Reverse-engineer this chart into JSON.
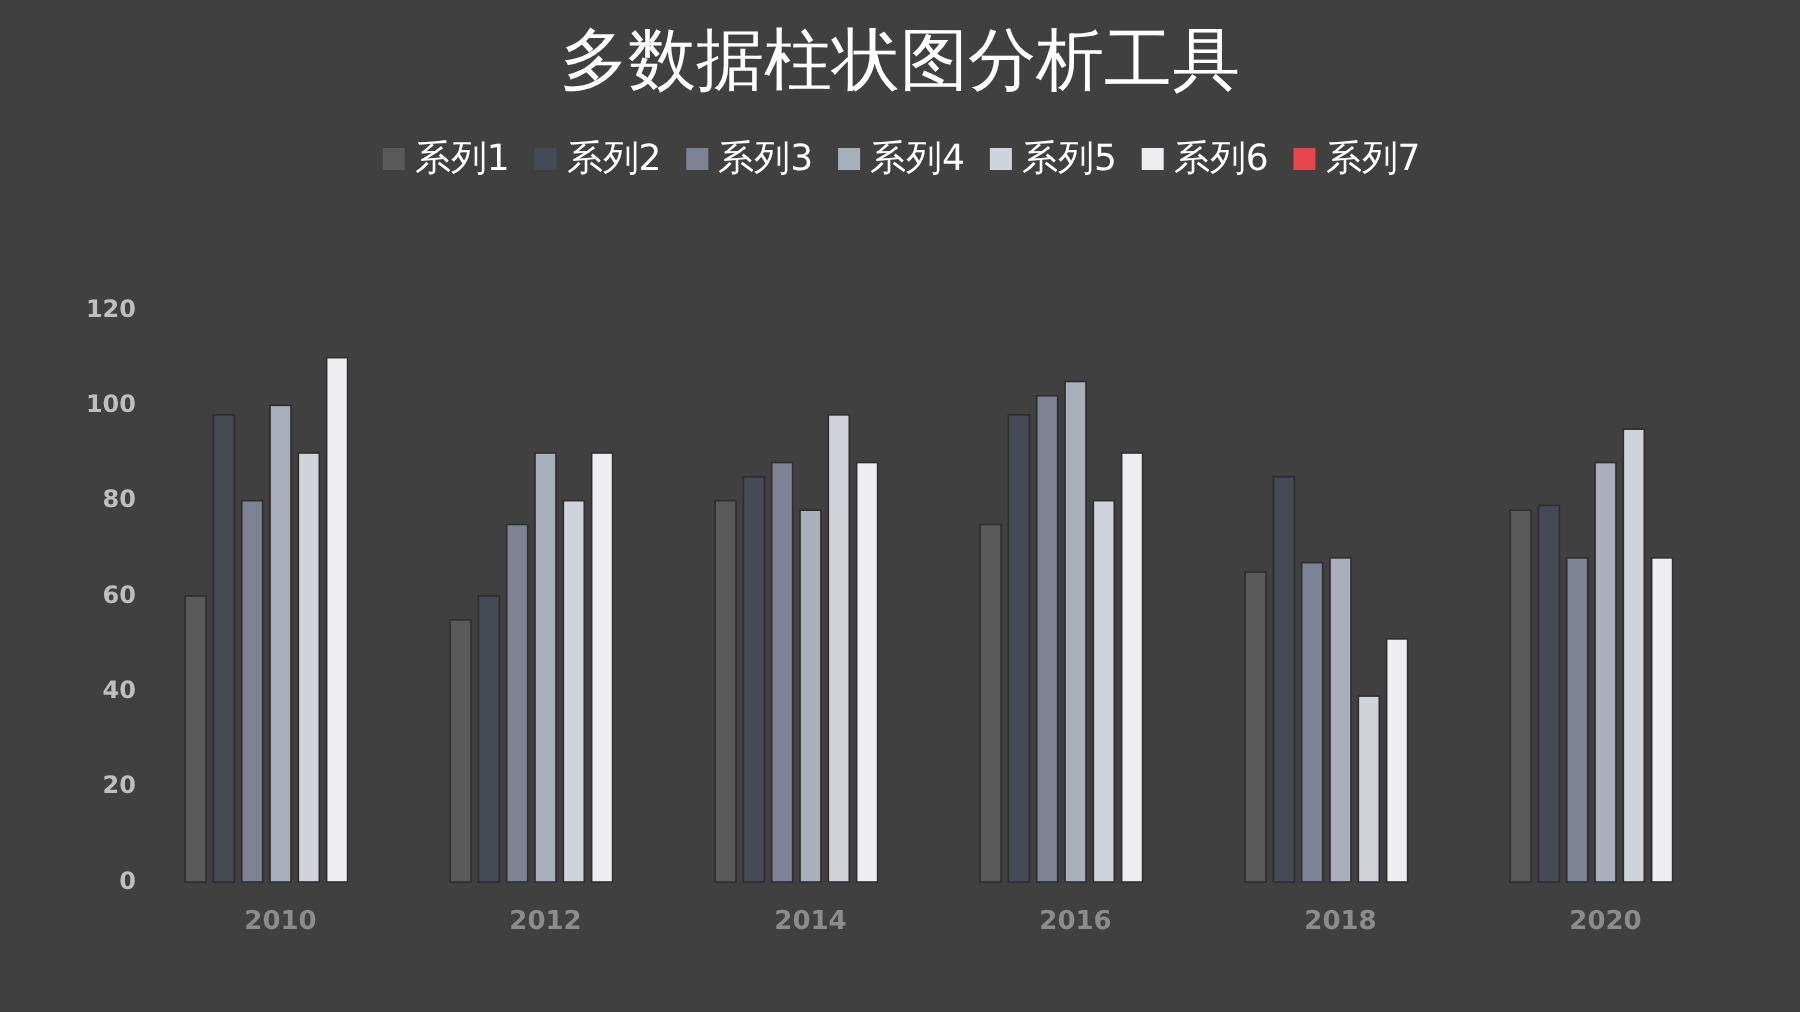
{
  "chart_data": {
    "type": "bar",
    "title": "多数据柱状图分析工具",
    "categories": [
      "2010",
      "2012",
      "2014",
      "2016",
      "2018",
      "2020"
    ],
    "series": [
      {
        "name": "系列1",
        "color": "#595959",
        "values": [
          60,
          55,
          80,
          75,
          65,
          78
        ]
      },
      {
        "name": "系列2",
        "color": "#454a55",
        "values": [
          98,
          60,
          85,
          98,
          85,
          79
        ]
      },
      {
        "name": "系列3",
        "color": "#7d8394",
        "values": [
          80,
          75,
          88,
          102,
          67,
          68
        ]
      },
      {
        "name": "系列4",
        "color": "#a9afbb",
        "values": [
          100,
          90,
          78,
          105,
          68,
          88
        ]
      },
      {
        "name": "系列5",
        "color": "#d0d3da",
        "values": [
          90,
          80,
          98,
          80,
          39,
          95
        ]
      },
      {
        "name": "系列6",
        "color": "#eeeef0",
        "values": [
          110,
          90,
          88,
          90,
          51,
          68
        ]
      },
      {
        "name": "系列7",
        "color": "#e8464d",
        "values": [
          null,
          null,
          null,
          null,
          null,
          null
        ]
      }
    ],
    "ylim": [
      0,
      120
    ],
    "yticks": [
      0,
      20,
      40,
      60,
      80,
      100,
      120
    ],
    "legend": "top"
  }
}
